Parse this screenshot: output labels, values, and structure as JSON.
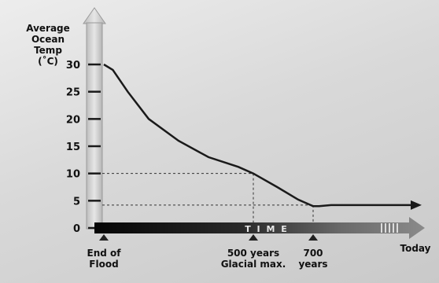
{
  "chart_data": {
    "type": "line",
    "ylabel": [
      "Average",
      "Ocean",
      "Temp",
      "(˚C)"
    ],
    "ylim": [
      0,
      30
    ],
    "yticks": [
      0,
      5,
      10,
      15,
      20,
      25,
      30
    ],
    "xlim": [
      0,
      1000
    ],
    "timeline_label": "T I M E",
    "x_markers": [
      {
        "x": 0,
        "label": [
          "End of",
          "Flood"
        ]
      },
      {
        "x": 500,
        "label": [
          "500 years",
          "Glacial max."
        ]
      },
      {
        "x": 700,
        "label": [
          "700",
          "years"
        ]
      }
    ],
    "end_label": "Today",
    "series": [
      {
        "points": [
          [
            0,
            30
          ],
          [
            30,
            29
          ],
          [
            80,
            25
          ],
          [
            150,
            20
          ],
          [
            250,
            16
          ],
          [
            350,
            13
          ],
          [
            450,
            11.2
          ],
          [
            500,
            10
          ],
          [
            580,
            7.5
          ],
          [
            650,
            5.2
          ],
          [
            700,
            4
          ],
          [
            720,
            4
          ],
          [
            760,
            4.2
          ],
          [
            850,
            4.2
          ],
          [
            1000,
            4.2
          ]
        ]
      }
    ],
    "reference_lines": [
      {
        "x": 500,
        "y": 10
      },
      {
        "x": 700,
        "y": 4.2
      }
    ],
    "colors": {
      "line": "#1a1a1a",
      "axis": "#d2d2d2",
      "timeline": "#1a1a1a",
      "arrow": "#3a3a3a"
    }
  }
}
